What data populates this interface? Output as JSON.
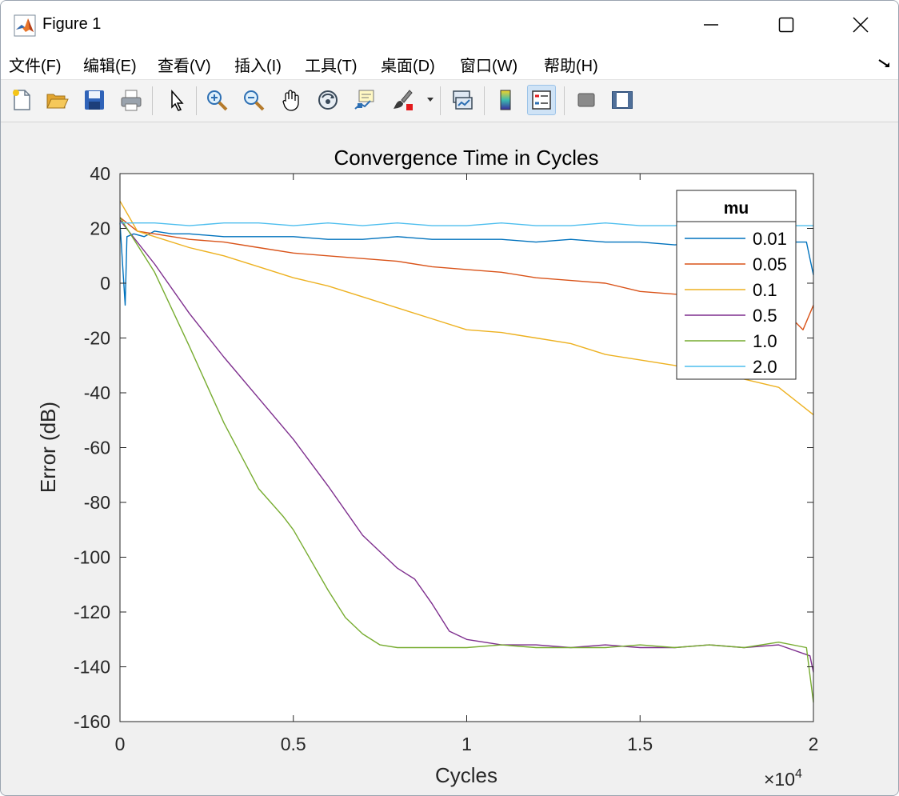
{
  "window": {
    "title": "Figure 1"
  },
  "menu": {
    "items": [
      "文件(F)",
      "编辑(E)",
      "查看(V)",
      "插入(I)",
      "工具(T)",
      "桌面(D)",
      "窗口(W)",
      "帮助(H)"
    ]
  },
  "toolbar": {
    "buttons": [
      "new-figure",
      "open-file",
      "save",
      "print",
      "edit-plot-arrow",
      "zoom-in",
      "zoom-out",
      "pan",
      "rotate-3d",
      "data-cursor",
      "brush",
      "link-plot",
      "colorbar",
      "legend",
      "hide-plot-tools",
      "show-plot-tools"
    ],
    "active": "legend"
  },
  "colors": {
    "accent": "#0072bd"
  },
  "chart_data": {
    "type": "line",
    "title": "Convergence Time in Cycles",
    "xlabel": "Cycles",
    "ylabel": "Error (dB)",
    "xlim": [
      0,
      20000
    ],
    "ylim": [
      -160,
      40
    ],
    "x_exponent_label": "×10",
    "x_exponent": "4",
    "x_ticks": [
      0,
      5000,
      10000,
      15000,
      20000
    ],
    "x_tick_labels": [
      "0",
      "0.5",
      "1",
      "1.5",
      "2"
    ],
    "y_ticks": [
      40,
      20,
      0,
      -20,
      -40,
      -60,
      -80,
      -100,
      -120,
      -140,
      -160
    ],
    "y_tick_labels": [
      "40",
      "20",
      "0",
      "-20",
      "-40",
      "-60",
      "-80",
      "-100",
      "-120",
      "-140",
      "-160"
    ],
    "grid": false,
    "legend": {
      "title": "mu",
      "placement": "top-right"
    },
    "series": [
      {
        "name": "0.01",
        "color": "#0072bd",
        "x": [
          0,
          150,
          200,
          400,
          700,
          1000,
          1500,
          2000,
          3000,
          4000,
          5000,
          6000,
          7000,
          8000,
          9000,
          10000,
          11000,
          12000,
          13000,
          14000,
          15000,
          16000,
          17000,
          18000,
          19000,
          19800,
          20000
        ],
        "y": [
          22,
          -8,
          17,
          18,
          17,
          19,
          18,
          18,
          17,
          17,
          17,
          16,
          16,
          17,
          16,
          16,
          16,
          15,
          16,
          15,
          15,
          14,
          15,
          14,
          15,
          15,
          3
        ]
      },
      {
        "name": "0.05",
        "color": "#d95319",
        "x": [
          0,
          500,
          1000,
          2000,
          3000,
          4000,
          5000,
          6000,
          7000,
          8000,
          9000,
          10000,
          11000,
          12000,
          13000,
          14000,
          15000,
          16000,
          17000,
          18000,
          19000,
          19700,
          20000
        ],
        "y": [
          24,
          19,
          18,
          16,
          15,
          13,
          11,
          10,
          9,
          8,
          6,
          5,
          4,
          2,
          1,
          0,
          -3,
          -4,
          -5,
          -6,
          -8,
          -17,
          -8
        ]
      },
      {
        "name": "0.1",
        "color": "#edb120",
        "x": [
          0,
          500,
          1000,
          2000,
          3000,
          4000,
          5000,
          6000,
          7000,
          8000,
          9000,
          10000,
          11000,
          12000,
          13000,
          14000,
          15000,
          16000,
          17000,
          18000,
          19000,
          20000
        ],
        "y": [
          30,
          19,
          17,
          13,
          10,
          6,
          2,
          -1,
          -5,
          -9,
          -13,
          -17,
          -18,
          -20,
          -22,
          -26,
          -28,
          -30,
          -33,
          -35,
          -38,
          -48
        ]
      },
      {
        "name": "0.5",
        "color": "#7e2f8e",
        "x": [
          0,
          1000,
          2000,
          3000,
          4000,
          5000,
          6000,
          7000,
          8000,
          8500,
          9000,
          9500,
          10000,
          11000,
          12000,
          13000,
          14000,
          15000,
          16000,
          17000,
          18000,
          19000,
          19900,
          20000
        ],
        "y": [
          23,
          7,
          -11,
          -27,
          -42,
          -57,
          -74,
          -92,
          -104,
          -108,
          -117,
          -127,
          -130,
          -132,
          -132,
          -133,
          -132,
          -133,
          -133,
          -132,
          -133,
          -132,
          -136,
          -142
        ]
      },
      {
        "name": "1.0",
        "color": "#77ac30",
        "x": [
          0,
          1000,
          2000,
          3000,
          4000,
          4700,
          5000,
          6000,
          6500,
          7000,
          7500,
          8000,
          9000,
          10000,
          11000,
          12000,
          13000,
          14000,
          15000,
          16000,
          17000,
          18000,
          19000,
          19800,
          20000
        ],
        "y": [
          24,
          4,
          -23,
          -51,
          -75,
          -85,
          -90,
          -112,
          -122,
          -128,
          -132,
          -133,
          -133,
          -133,
          -132,
          -133,
          -133,
          -133,
          -132,
          -133,
          -132,
          -133,
          -131,
          -133,
          -153
        ]
      },
      {
        "name": "2.0",
        "color": "#4dbeee",
        "x": [
          0,
          500,
          1000,
          2000,
          3000,
          4000,
          5000,
          6000,
          7000,
          8000,
          9000,
          10000,
          11000,
          12000,
          13000,
          14000,
          15000,
          16000,
          17000,
          18000,
          19000,
          20000
        ],
        "y": [
          22,
          22,
          22,
          21,
          22,
          22,
          21,
          22,
          21,
          22,
          21,
          21,
          22,
          21,
          21,
          22,
          21,
          21,
          22,
          21,
          21,
          21
        ]
      }
    ]
  }
}
